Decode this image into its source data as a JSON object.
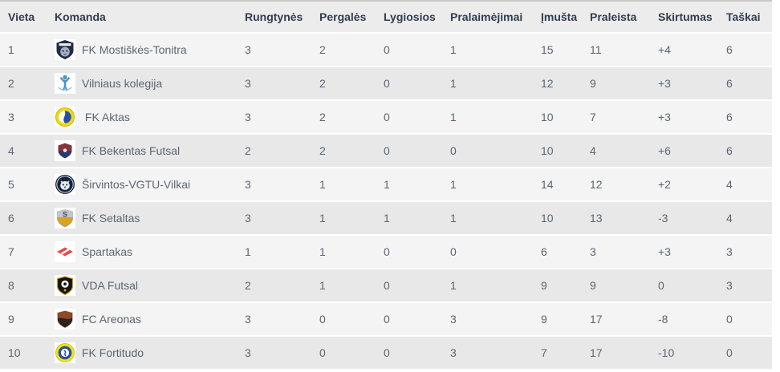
{
  "table": {
    "columns": [
      "Vieta",
      "Komanda",
      "Rungtynės",
      "Pergalės",
      "Lygiosios",
      "Pralaimėjimai",
      "Įmušta",
      "Praleista",
      "Skirtumas",
      "Taškai"
    ],
    "rows": [
      {
        "vieta": "1",
        "komanda": "FK Mostiškės-Tonitra",
        "rungtynes": "3",
        "pergales": "2",
        "lygiosios": "0",
        "pralaimejimai": "1",
        "imusta": "15",
        "praleista": "11",
        "skirtumas": "+4",
        "taskai": "6",
        "logo": {
          "name": "fk-mostiskes-tonitra-logo",
          "shape": "shield-face",
          "colors": [
            "#1d2c4c",
            "#e9e9ec",
            "#aab0bd"
          ]
        }
      },
      {
        "vieta": "2",
        "komanda": "Vilniaus kolegija",
        "rungtynes": "3",
        "pergales": "2",
        "lygiosios": "0",
        "pralaimejimai": "1",
        "imusta": "12",
        "praleista": "9",
        "skirtumas": "+3",
        "taskai": "6",
        "logo": {
          "name": "vilniaus-kolegija-logo",
          "shape": "person",
          "colors": [
            "#4d93c6",
            "#8fc0de"
          ]
        }
      },
      {
        "vieta": "3",
        "komanda": " FK Aktas",
        "rungtynes": "3",
        "pergales": "2",
        "lygiosios": "0",
        "pralaimejimai": "1",
        "imusta": "10",
        "praleista": "7",
        "skirtumas": "+3",
        "taskai": "6",
        "logo": {
          "name": "fk-aktas-logo",
          "shape": "ball",
          "colors": [
            "#f3d90e",
            "#2350a5",
            "#ffffff"
          ]
        }
      },
      {
        "vieta": "4",
        "komanda": "FK Bekentas Futsal",
        "rungtynes": "2",
        "pergales": "2",
        "lygiosios": "0",
        "pralaimejimai": "0",
        "imusta": "10",
        "praleista": "4",
        "skirtumas": "+6",
        "taskai": "6",
        "logo": {
          "name": "fk-bekentas-futsal-logo",
          "shape": "shield-halves",
          "colors": [
            "#87323c",
            "#2a3a68",
            "#ffffff"
          ]
        }
      },
      {
        "vieta": "5",
        "komanda": "Širvintos-VGTU-Vilkai",
        "rungtynes": "3",
        "pergales": "1",
        "lygiosios": "1",
        "pralaimejimai": "1",
        "imusta": "14",
        "praleista": "12",
        "skirtumas": "+2",
        "taskai": "4",
        "logo": {
          "name": "sirvintos-vgtu-vilkai-logo",
          "shape": "circle-face",
          "colors": [
            "#16253f",
            "#e8eaee",
            "#5a6478"
          ]
        }
      },
      {
        "vieta": "6",
        "komanda": "FK Setaltas",
        "rungtynes": "3",
        "pergales": "1",
        "lygiosios": "1",
        "pralaimejimai": "1",
        "imusta": "10",
        "praleista": "13",
        "skirtumas": "-3",
        "taskai": "4",
        "logo": {
          "name": "fk-setaltas-logo",
          "shape": "shield-split",
          "colors": [
            "#c3c6cc",
            "#d8a41e",
            "#474c55"
          ]
        }
      },
      {
        "vieta": "7",
        "komanda": "Spartakas",
        "rungtynes": "1",
        "pergales": "1",
        "lygiosios": "0",
        "pralaimejimai": "0",
        "imusta": "6",
        "praleista": "3",
        "skirtumas": "+3",
        "taskai": "3",
        "logo": {
          "name": "spartakas-logo",
          "shape": "rhombus",
          "colors": [
            "#e44c48",
            "#ffffff"
          ]
        }
      },
      {
        "vieta": "8",
        "komanda": "VDA Futsal",
        "rungtynes": "2",
        "pergales": "1",
        "lygiosios": "0",
        "pralaimejimai": "1",
        "imusta": "9",
        "praleista": "9",
        "skirtumas": "0",
        "taskai": "3",
        "logo": {
          "name": "vda-futsal-logo",
          "shape": "shield-badge",
          "colors": [
            "#141414",
            "#caa22a",
            "#f4f4f4"
          ]
        }
      },
      {
        "vieta": "9",
        "komanda": "FC Areonas",
        "rungtynes": "3",
        "pergales": "0",
        "lygiosios": "0",
        "pralaimejimai": "3",
        "imusta": "9",
        "praleista": "17",
        "skirtumas": "-8",
        "taskai": "0",
        "logo": {
          "name": "fc-areonas-logo",
          "shape": "shield-rust",
          "colors": [
            "#2b241e",
            "#8c4a28",
            "#cfc8bd"
          ]
        }
      },
      {
        "vieta": "10",
        "komanda": "FK Fortitudo",
        "rungtynes": "3",
        "pergales": "0",
        "lygiosios": "0",
        "pralaimejimai": "3",
        "imusta": "7",
        "praleista": "17",
        "skirtumas": "-10",
        "taskai": "0",
        "logo": {
          "name": "fk-fortitudo-logo",
          "shape": "donut",
          "colors": [
            "#f1e61a",
            "#2b4fa3",
            "#ffffff"
          ]
        }
      }
    ]
  },
  "palette": {
    "header_bg": "#ececec",
    "row_odd_bg": "#f4f4f4",
    "row_even_bg": "#e8e8e8",
    "header_text": "#2f3e4e",
    "cell_text": "#5b6672",
    "top_border": "#c9c9c9",
    "row_gap": "#ffffff"
  }
}
